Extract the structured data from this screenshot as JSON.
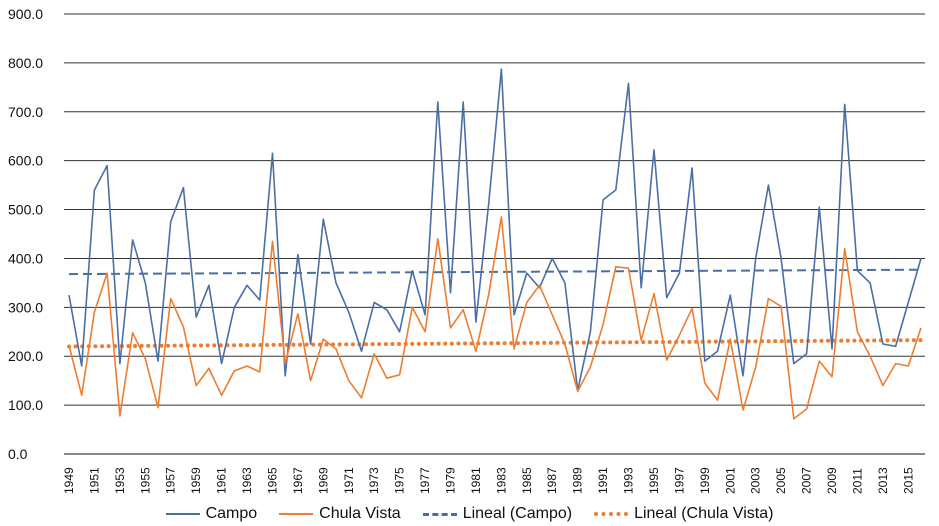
{
  "chart_data": {
    "type": "line",
    "title": "",
    "xlabel": "",
    "ylabel": "",
    "ylim": [
      0,
      900
    ],
    "yticks": [
      "0.0",
      "100.0",
      "200.0",
      "300.0",
      "400.0",
      "500.0",
      "600.0",
      "700.0",
      "800.0",
      "900.0"
    ],
    "grid": true,
    "legend_position": "bottom",
    "x": [
      1949,
      1950,
      1951,
      1952,
      1953,
      1954,
      1955,
      1956,
      1957,
      1958,
      1959,
      1960,
      1961,
      1962,
      1963,
      1964,
      1965,
      1966,
      1967,
      1968,
      1969,
      1970,
      1971,
      1972,
      1973,
      1974,
      1975,
      1976,
      1977,
      1978,
      1979,
      1980,
      1981,
      1982,
      1983,
      1984,
      1985,
      1986,
      1987,
      1988,
      1989,
      1990,
      1991,
      1992,
      1993,
      1994,
      1995,
      1996,
      1997,
      1998,
      1999,
      2000,
      2001,
      2002,
      2003,
      2004,
      2005,
      2006,
      2007,
      2008,
      2009,
      2010,
      2011,
      2012,
      2013,
      2014,
      2015,
      2016
    ],
    "xtick_labels": [
      "1949",
      "1951",
      "1953",
      "1955",
      "1957",
      "1959",
      "1961",
      "1963",
      "1965",
      "1967",
      "1969",
      "1971",
      "1973",
      "1975",
      "1977",
      "1979",
      "1981",
      "1983",
      "1985",
      "1987",
      "1989",
      "1991",
      "1993",
      "1995",
      "1997",
      "1999",
      "2001",
      "2003",
      "2005",
      "2007",
      "2009",
      "2011",
      "2013",
      "2015"
    ],
    "series": [
      {
        "name": "Campo",
        "style": "solid",
        "color": "#4a6fa5",
        "values": [
          325,
          180,
          540,
          590,
          185,
          438,
          350,
          190,
          475,
          545,
          280,
          345,
          185,
          300,
          345,
          315,
          615,
          160,
          408,
          225,
          480,
          350,
          290,
          210,
          310,
          295,
          250,
          375,
          285,
          720,
          330,
          720,
          270,
          510,
          787,
          285,
          370,
          340,
          400,
          350,
          130,
          250,
          520,
          540,
          758,
          340,
          622,
          320,
          370,
          585,
          190,
          210,
          325,
          160,
          400,
          550,
          400,
          185,
          205,
          505,
          215,
          715,
          375,
          350,
          225,
          220,
          310,
          400
        ]
      },
      {
        "name": "Chula Vista",
        "style": "solid",
        "color": "#ed7d31",
        "values": [
          222,
          120,
          290,
          370,
          78,
          248,
          195,
          95,
          318,
          260,
          140,
          175,
          120,
          170,
          180,
          168,
          435,
          185,
          287,
          150,
          235,
          215,
          150,
          115,
          205,
          155,
          162,
          300,
          250,
          440,
          258,
          295,
          210,
          325,
          485,
          215,
          310,
          345,
          285,
          225,
          128,
          178,
          265,
          383,
          380,
          233,
          328,
          192,
          243,
          298,
          145,
          110,
          235,
          90,
          178,
          318,
          302,
          72,
          92,
          190,
          158,
          420,
          250,
          200,
          140,
          185,
          180,
          258
        ]
      },
      {
        "name": "Lineal (Campo)",
        "style": "dashed",
        "color": "#4a6fa5",
        "trend_of": "Campo",
        "values_endpoints": [
          368,
          377
        ]
      },
      {
        "name": "Lineal (Chula Vista)",
        "style": "dotted",
        "color": "#ed7d31",
        "trend_of": "Chula Vista",
        "values_endpoints": [
          220,
          233
        ]
      }
    ]
  }
}
